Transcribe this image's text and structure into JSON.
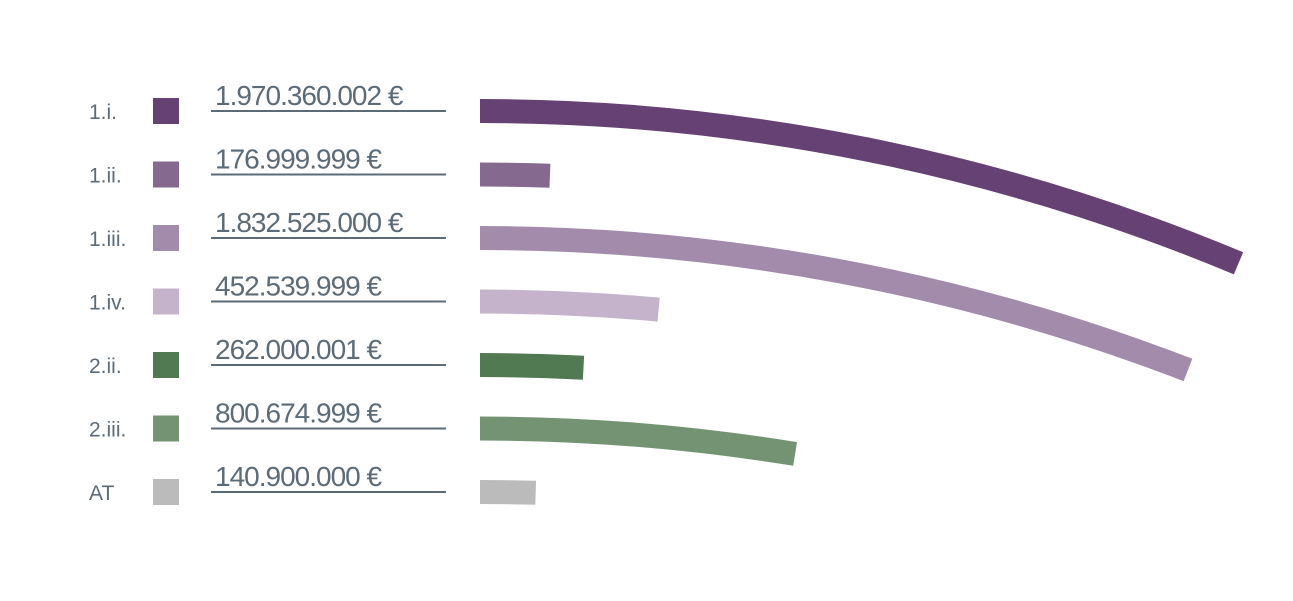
{
  "chart_data": {
    "type": "bar",
    "style": "curved radial arcs",
    "categories": [
      "1.i.",
      "1.ii.",
      "1.iii.",
      "1.iv.",
      "2.ii.",
      "2.iii.",
      "AT"
    ],
    "values": [
      1970360002,
      176999999,
      1832525000,
      452539999,
      262000001,
      800674999,
      140900000
    ],
    "value_labels": [
      "1.970.360.002 €",
      "176.999.999 €",
      "1.832.525.000 €",
      "452.539.999 €",
      "262.000.001 €",
      "800.674.999 €",
      "140.900.000 €"
    ],
    "colors": [
      "#664173",
      "#86698f",
      "#a38bac",
      "#c4b3cb",
      "#527a52",
      "#739373",
      "#bbbbbb"
    ],
    "title": "",
    "xlabel": "",
    "ylabel": "",
    "grid": false,
    "legend": "left swatches"
  }
}
